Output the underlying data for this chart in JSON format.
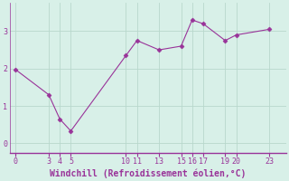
{
  "x": [
    0,
    3,
    4,
    5,
    10,
    11,
    13,
    15,
    16,
    17,
    19,
    20,
    23
  ],
  "y": [
    1.97,
    1.3,
    0.65,
    0.33,
    2.35,
    2.75,
    2.5,
    2.6,
    3.3,
    3.2,
    2.75,
    2.9,
    3.05
  ],
  "xticks": [
    0,
    3,
    4,
    5,
    10,
    11,
    13,
    15,
    16,
    17,
    19,
    20,
    23
  ],
  "yticks": [
    0,
    1,
    2,
    3
  ],
  "xlim": [
    -0.5,
    24.5
  ],
  "ylim": [
    -0.25,
    3.75
  ],
  "xlabel": "Windchill (Refroidissement éolien,°C)",
  "line_color": "#993399",
  "marker": "D",
  "marker_size": 2.5,
  "background_color": "#d8f0e8",
  "grid_color": "#b8d8cc",
  "tick_color": "#993399",
  "label_color": "#993399",
  "spine_color": "#993399",
  "font_family": "monospace",
  "tick_fontsize": 6,
  "label_fontsize": 7
}
